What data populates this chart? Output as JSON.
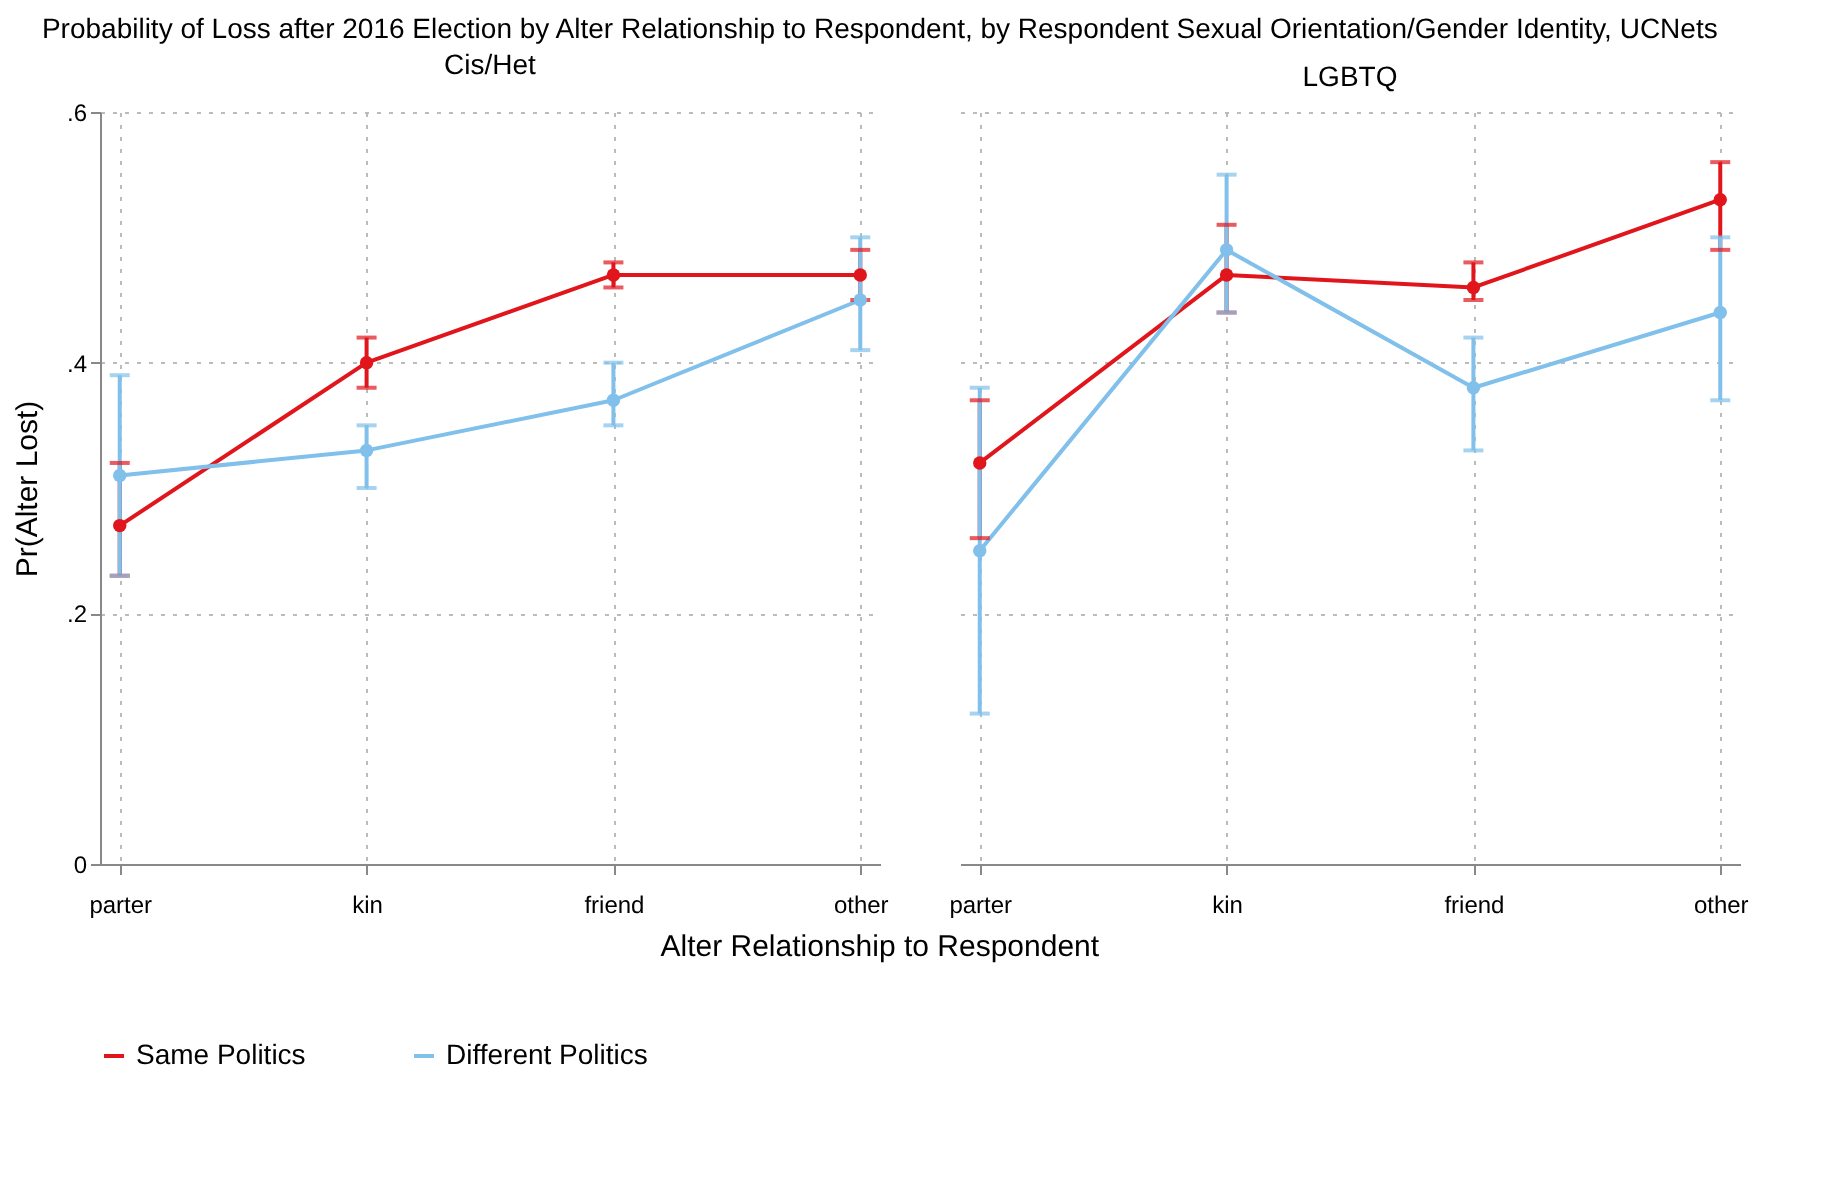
{
  "chart_data": [
    {
      "type": "line",
      "title": "Probability of Loss after 2016 Election by Alter Relationship to Respondent, by Respondent Sexual Orientation/Gender Identity, UCNets",
      "subtitle": "Cis/Het",
      "xlabel": "Alter Relationship to Respondent",
      "ylabel": "Pr(Alter Lost)",
      "categories": [
        "parter",
        "kin",
        "friend",
        "other"
      ],
      "ylim": [
        0,
        0.6
      ],
      "yticks": [
        {
          "value": 0,
          "label": "0"
        },
        {
          "value": 0.2,
          "label": ".2"
        },
        {
          "value": 0.4,
          "label": ".4"
        },
        {
          "value": 0.6,
          "label": ".6"
        }
      ],
      "grid": true,
      "legend": "bottom",
      "marker": "circle",
      "series": [
        {
          "name": "Same Politics",
          "color": "#e0161c",
          "values": [
            0.27,
            0.4,
            0.47,
            0.47
          ],
          "errors": [
            [
              0.23,
              0.32
            ],
            [
              0.38,
              0.42
            ],
            [
              0.46,
              0.48
            ],
            [
              0.45,
              0.49
            ]
          ]
        },
        {
          "name": "Different Politics",
          "color": "#80c0ea",
          "values": [
            0.31,
            0.33,
            0.37,
            0.45
          ],
          "errors": [
            [
              0.23,
              0.39
            ],
            [
              0.3,
              0.35
            ],
            [
              0.35,
              0.4
            ],
            [
              0.41,
              0.5
            ]
          ]
        }
      ]
    },
    {
      "type": "line",
      "subtitle": "LGBTQ",
      "categories": [
        "parter",
        "kin",
        "friend",
        "other"
      ],
      "ylim": [
        0,
        0.6
      ],
      "yticks": [
        0,
        0.2,
        0.4,
        0.6
      ],
      "grid": true,
      "tick_labels": "x",
      "marker": "circle",
      "line_style": "solid",
      "series": [
        {
          "name": "Same Politics",
          "color": "#e0161c",
          "values": [
            0.32,
            0.47,
            0.46,
            0.53
          ],
          "errors": [
            [
              0.26,
              0.37
            ],
            [
              0.44,
              0.51
            ],
            [
              0.45,
              0.48
            ],
            [
              0.49,
              0.56
            ]
          ]
        },
        {
          "name": "Different Politics",
          "color": "#80c0ea",
          "values": [
            0.25,
            0.49,
            0.38,
            0.44
          ],
          "errors": [
            [
              0.12,
              0.38
            ],
            [
              0.44,
              0.55
            ],
            [
              0.33,
              0.42
            ],
            [
              0.37,
              0.5
            ]
          ]
        }
      ]
    }
  ]
}
